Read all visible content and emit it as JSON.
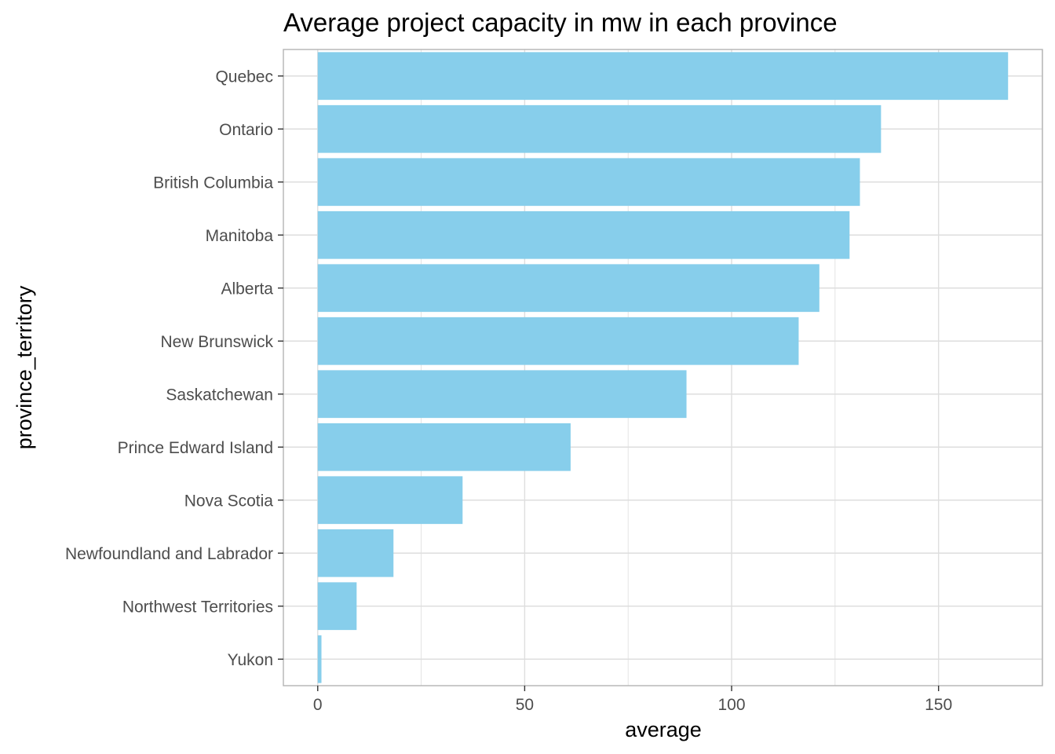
{
  "chart_data": {
    "type": "bar",
    "orientation": "horizontal",
    "title": "Average project capacity in mw in each province",
    "xlabel": "average",
    "ylabel": "province_territory",
    "categories": [
      "Quebec",
      "Ontario",
      "British Columbia",
      "Manitoba",
      "Alberta",
      "New Brunswick",
      "Saskatchewan",
      "Prince Edward Island",
      "Nova Scotia",
      "Newfoundland and Labrador",
      "Northwest Territories",
      "Yukon"
    ],
    "values": [
      166.8,
      136.1,
      131.0,
      128.5,
      121.2,
      116.2,
      89.1,
      61.1,
      35.0,
      18.3,
      9.4,
      0.9
    ],
    "xlim": [
      -8.3,
      175.1
    ],
    "x_ticks": [
      0,
      50,
      100,
      150
    ],
    "x_tick_labels": [
      "0",
      "50",
      "100",
      "150"
    ],
    "grid": true,
    "theme": "light",
    "bar_color": "#87CEEB",
    "grid_color": "#dedede",
    "panel_border_color": "#b3b3b3"
  }
}
